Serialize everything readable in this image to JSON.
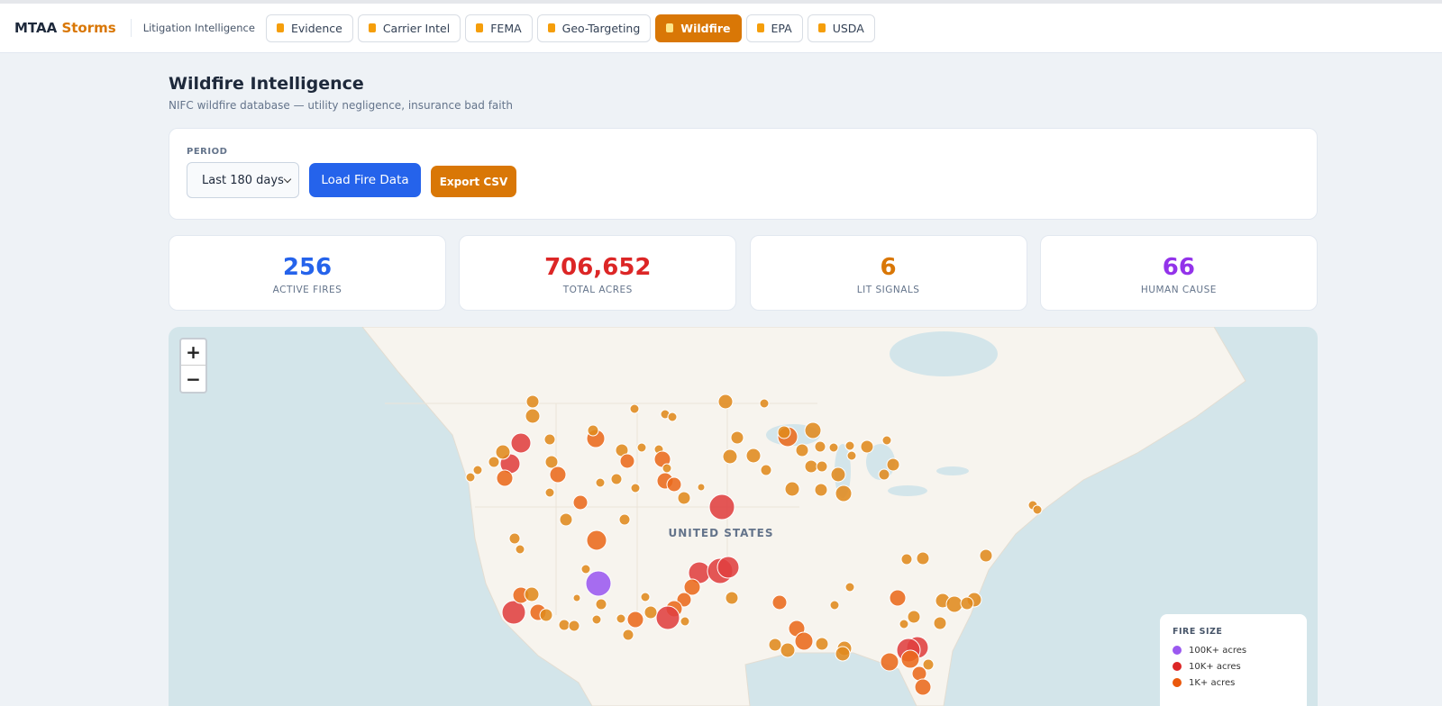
{
  "nav": {
    "brand_main": "MTAA",
    "brand_accent": "Storms",
    "section": "Litigation Intelligence",
    "tabs": [
      "Evidence",
      "Carrier Intel",
      "FEMA",
      "Geo-Targeting",
      "Wildfire",
      "EPA",
      "USDA"
    ],
    "active_tab": "Wildfire"
  },
  "header": {
    "title": "Wildfire Intelligence",
    "subtitle": "NIFC wildfire database — utility negligence, insurance bad faith"
  },
  "controls": {
    "period_label": "PERIOD",
    "period_value": "Last 180 days",
    "load_button": "Load Fire Data",
    "export_button": "Export CSV"
  },
  "stats": [
    {
      "value": "256",
      "label": "ACTIVE FIRES",
      "color": "#2563eb"
    },
    {
      "value": "706,652",
      "label": "TOTAL ACRES",
      "color": "#dc2626"
    },
    {
      "value": "6",
      "label": "LIT SIGNALS",
      "color": "#d97706"
    },
    {
      "value": "66",
      "label": "HUMAN CAUSE",
      "color": "#9333ea"
    }
  ],
  "map": {
    "country_label": "UNITED STATES",
    "zoom_in": "+",
    "zoom_out": "−",
    "legend": {
      "title": "FIRE SIZE",
      "items": [
        {
          "name": "100K+ acres",
          "color": "#9b59f0"
        },
        {
          "name": "10K+ acres",
          "color": "#dc2626"
        },
        {
          "name": "1K+ acres",
          "color": "#ea580c"
        }
      ]
    }
  }
}
